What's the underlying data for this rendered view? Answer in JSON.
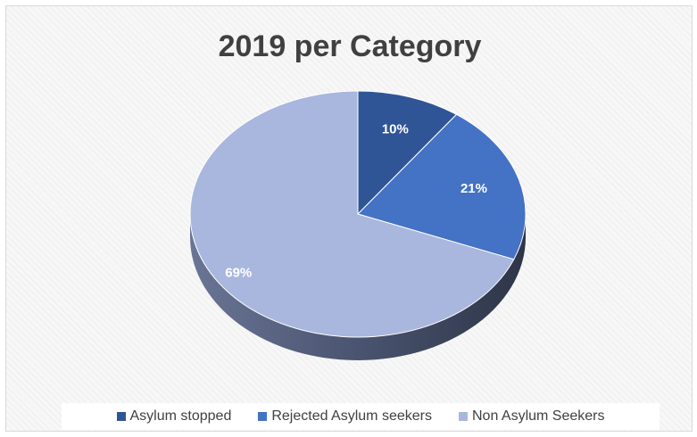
{
  "chart_data": {
    "type": "pie",
    "title": "2019 per Category",
    "categories": [
      "Asylum stopped",
      "Rejected Asylum seekers",
      "Non Asylum Seekers"
    ],
    "values": [
      10,
      21,
      69
    ],
    "labels": [
      "10%",
      "21%",
      "69%"
    ],
    "colors": [
      "#2f5597",
      "#4472c4",
      "#a9b7de"
    ],
    "legend_position": "bottom"
  }
}
